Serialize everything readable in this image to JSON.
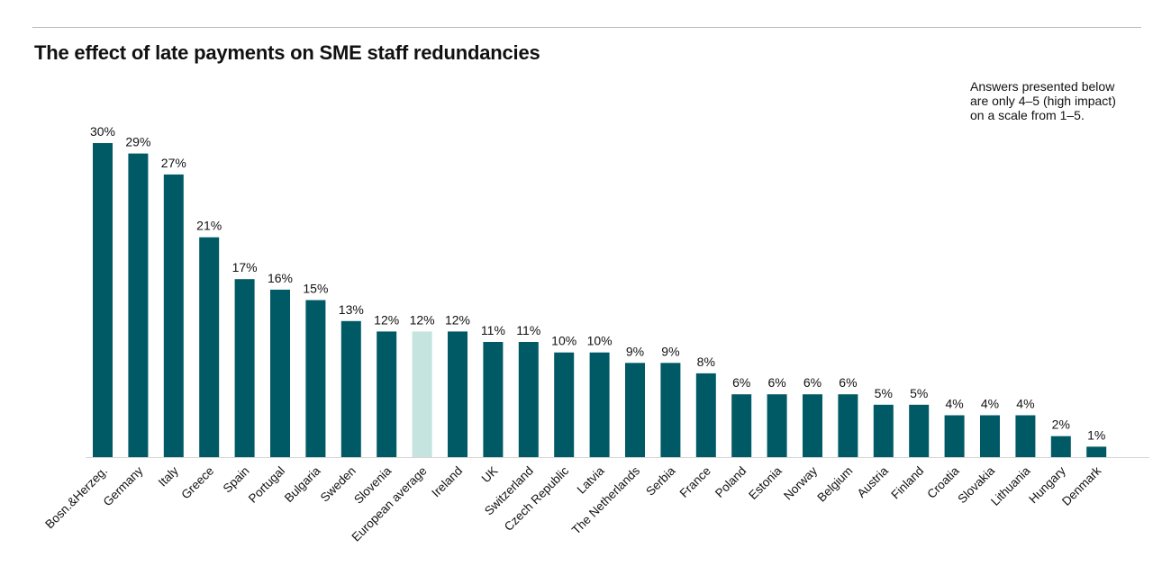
{
  "header": {
    "title": "The effect of late payments on SME staff redundancies",
    "note_lines": [
      "Answers presented below",
      "are only 4–5 (high impact)",
      "on a scale from 1–5."
    ]
  },
  "colors": {
    "bar": "#005a66",
    "highlight": "#c5e3df",
    "axis": "#d6d6d6",
    "text": "#111111"
  },
  "chart_data": {
    "type": "bar",
    "title": "The effect of late payments on SME staff redundancies",
    "xlabel": "",
    "ylabel": "",
    "unit": "%",
    "ylim": [
      0,
      30
    ],
    "grid": false,
    "highlight_category": "European average",
    "categories": [
      "Bosn.&Herzeg.",
      "Germany",
      "Italy",
      "Greece",
      "Spain",
      "Portugal",
      "Bulgaria",
      "Sweden",
      "Slovenia",
      "European average",
      "Ireland",
      "UK",
      "Switzerland",
      "Czech Republic",
      "Latvia",
      "The Netherlands",
      "Serbia",
      "France",
      "Poland",
      "Estonia",
      "Norway",
      "Belgium",
      "Austria",
      "Finland",
      "Croatia",
      "Slovakia",
      "Lithuania",
      "Hungary",
      "Denmark"
    ],
    "values": [
      30,
      29,
      27,
      21,
      17,
      16,
      15,
      13,
      12,
      12,
      12,
      11,
      11,
      10,
      10,
      9,
      9,
      8,
      6,
      6,
      6,
      6,
      5,
      5,
      4,
      4,
      4,
      2,
      1
    ],
    "labels": [
      "30%",
      "29%",
      "27%",
      "21%",
      "17%",
      "16%",
      "15%",
      "13%",
      "12%",
      "12%",
      "12%",
      "11%",
      "11%",
      "10%",
      "10%",
      "9%",
      "9%",
      "8%",
      "6%",
      "6%",
      "6%",
      "6%",
      "5%",
      "5%",
      "4%",
      "4%",
      "4%",
      "2%",
      "1%"
    ]
  }
}
